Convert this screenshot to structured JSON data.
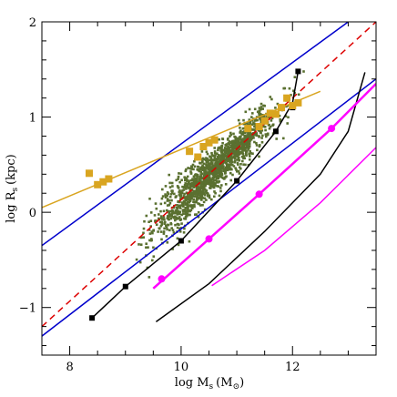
{
  "chart_data": {
    "type": "scatter",
    "title": "",
    "xlabel": {
      "main": "log M",
      "sub": "s",
      "unit": "(M",
      "unit_sub": "⊙",
      "unit_close": ")"
    },
    "ylabel": {
      "main": "log R",
      "sub": "s",
      "unit": "(kpc)"
    },
    "xlim": [
      7.5,
      13.5
    ],
    "ylim": [
      -1.5,
      2.0
    ],
    "x_ticks": [
      8,
      10,
      12
    ],
    "y_ticks": [
      -1,
      0,
      1,
      2
    ],
    "grid": false,
    "colors": {
      "points": "#5a7030",
      "blue": "#0000cc",
      "red": "#dd0000",
      "black": "#000000",
      "magenta": "#ff00ff",
      "gold": "#d9a520"
    },
    "scatter": {
      "ridge_slope": 0.56,
      "ridge_intercept": -5.5,
      "x_range": [
        9.2,
        12.3
      ],
      "count": 1500
    },
    "series": [
      {
        "style": "solid",
        "color": "blue",
        "points": [
          [
            7.5,
            -0.35
          ],
          [
            13.0,
            2.0
          ]
        ]
      },
      {
        "style": "solid",
        "color": "blue",
        "points": [
          [
            7.5,
            -1.3
          ],
          [
            13.5,
            1.4
          ]
        ]
      },
      {
        "style": "dashed",
        "color": "red",
        "points": [
          [
            7.5,
            -1.2
          ],
          [
            13.5,
            2.0
          ]
        ]
      },
      {
        "style": "solid",
        "color": "gold",
        "points": [
          [
            7.5,
            0.05
          ],
          [
            12.5,
            1.27
          ]
        ]
      },
      {
        "style": "solid",
        "color": "black",
        "points": [
          [
            8.4,
            -1.11
          ],
          [
            9.0,
            -0.78
          ],
          [
            10.0,
            -0.3
          ],
          [
            11.0,
            0.33
          ],
          [
            11.7,
            0.85
          ],
          [
            12.0,
            1.15
          ],
          [
            12.1,
            1.48
          ]
        ]
      },
      {
        "style": "solid",
        "color": "black",
        "points": [
          [
            9.55,
            -1.15
          ],
          [
            10.5,
            -0.75
          ],
          [
            11.5,
            -0.2
          ],
          [
            12.5,
            0.4
          ],
          [
            13.0,
            0.85
          ],
          [
            13.3,
            1.47
          ]
        ]
      },
      {
        "style": "solid",
        "color": "magenta",
        "points": [
          [
            9.5,
            -0.8
          ],
          [
            10.5,
            -0.28
          ],
          [
            11.4,
            0.19
          ],
          [
            12.7,
            0.88
          ],
          [
            13.5,
            1.35
          ]
        ]
      },
      {
        "style": "solid",
        "color": "magenta",
        "points": [
          [
            10.55,
            -0.77
          ],
          [
            11.5,
            -0.4
          ],
          [
            12.5,
            0.1
          ],
          [
            13.5,
            0.68
          ]
        ]
      }
    ],
    "markers": [
      {
        "shape": "square",
        "color": "black",
        "size": 6,
        "points": [
          [
            8.4,
            -1.11
          ],
          [
            9.0,
            -0.78
          ],
          [
            10.0,
            -0.3
          ],
          [
            11.0,
            0.33
          ],
          [
            11.7,
            0.85
          ],
          [
            12.0,
            1.1
          ],
          [
            12.1,
            1.48
          ]
        ]
      },
      {
        "shape": "circle",
        "color": "magenta",
        "size": 8,
        "points": [
          [
            9.65,
            -0.7
          ],
          [
            10.5,
            -0.28
          ],
          [
            11.4,
            0.19
          ],
          [
            12.7,
            0.88
          ]
        ]
      },
      {
        "shape": "square",
        "color": "gold",
        "size": 8,
        "points": [
          [
            8.35,
            0.41
          ],
          [
            8.5,
            0.29
          ],
          [
            8.6,
            0.32
          ],
          [
            8.7,
            0.35
          ],
          [
            10.15,
            0.64
          ],
          [
            10.3,
            0.58
          ],
          [
            10.4,
            0.69
          ],
          [
            10.5,
            0.73
          ],
          [
            10.6,
            0.76
          ],
          [
            11.2,
            0.88
          ],
          [
            11.4,
            0.9
          ],
          [
            11.5,
            0.96
          ],
          [
            11.6,
            1.04
          ],
          [
            11.7,
            1.03
          ],
          [
            11.8,
            1.1
          ],
          [
            11.9,
            1.2
          ],
          [
            12.0,
            1.12
          ],
          [
            12.1,
            1.15
          ]
        ]
      }
    ]
  }
}
